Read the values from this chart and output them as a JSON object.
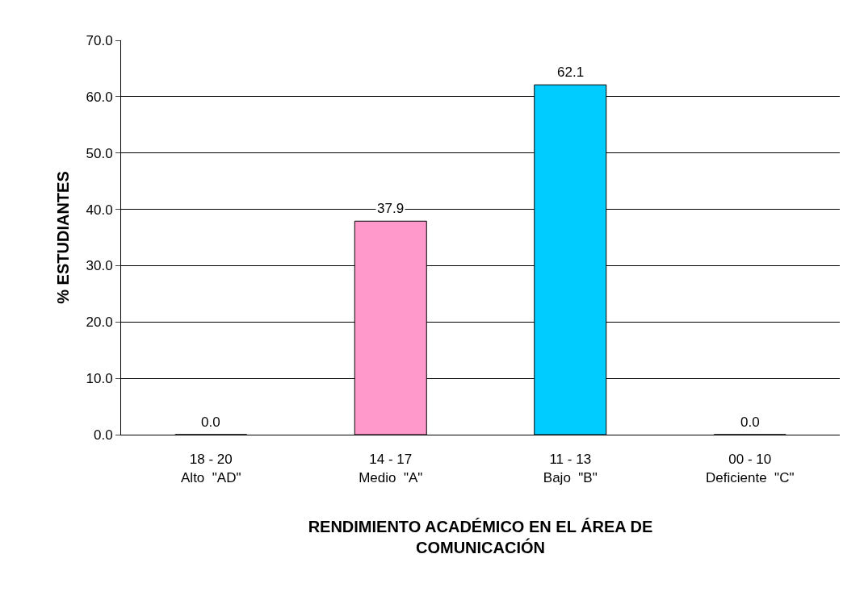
{
  "chart_data": {
    "type": "bar",
    "categories": [
      "18 - 20\nAlto  \"AD\"",
      "14 - 17\nMedio  \"A\"",
      "11 - 13\nBajo  \"B\"",
      "00 - 10\nDeficiente  \"C\""
    ],
    "values": [
      0,
      37.9,
      62.1,
      0
    ],
    "colors": [
      "#9999ff",
      "#ff99cc",
      "#00ccff",
      "#9999ff"
    ],
    "value_labels": [
      "0.0",
      "37.9",
      "62.1",
      "0.0"
    ],
    "xlabel": "RENDIMIENTO ACADÉMICO EN EL ÁREA DE\nCOMUNICACIÓN",
    "ylabel": "% ESTUDIANTES",
    "ylim": [
      0,
      70
    ],
    "yticks": [
      {
        "value": 0,
        "label": "0.0"
      },
      {
        "value": 10,
        "label": "10.0"
      },
      {
        "value": 20,
        "label": "20.0"
      },
      {
        "value": 30,
        "label": "30.0"
      },
      {
        "value": 40,
        "label": "40.0"
      },
      {
        "value": 50,
        "label": "50.0"
      },
      {
        "value": 60,
        "label": "60.0"
      },
      {
        "value": 70,
        "label": "70.0"
      }
    ],
    "grid": "y",
    "legend": false
  }
}
